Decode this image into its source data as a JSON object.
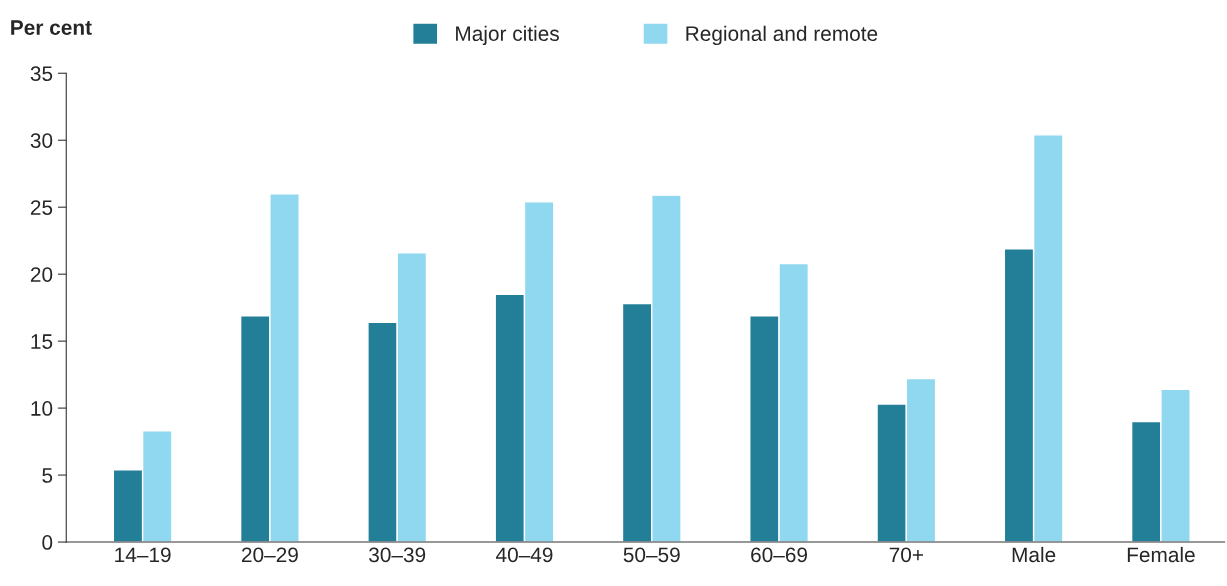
{
  "chart_data": {
    "type": "bar",
    "ylabel": "Per cent",
    "categories": [
      "14–19",
      "20–29",
      "30–39",
      "40–49",
      "50–59",
      "60–69",
      "70+",
      "Male",
      "Female"
    ],
    "series": [
      {
        "name": "Major cities",
        "color": "#237f98",
        "values": [
          5.4,
          16.9,
          16.4,
          18.5,
          17.8,
          16.9,
          10.3,
          21.9,
          9.0
        ]
      },
      {
        "name": "Regional and remote",
        "color": "#8fd8ef",
        "values": [
          8.3,
          26.0,
          21.6,
          25.4,
          25.9,
          20.8,
          12.2,
          30.4,
          11.4
        ]
      }
    ],
    "ylim": [
      0,
      35
    ],
    "yticks": [
      0,
      5,
      10,
      15,
      20,
      25,
      30,
      35
    ],
    "grid": false,
    "legend": "top"
  }
}
